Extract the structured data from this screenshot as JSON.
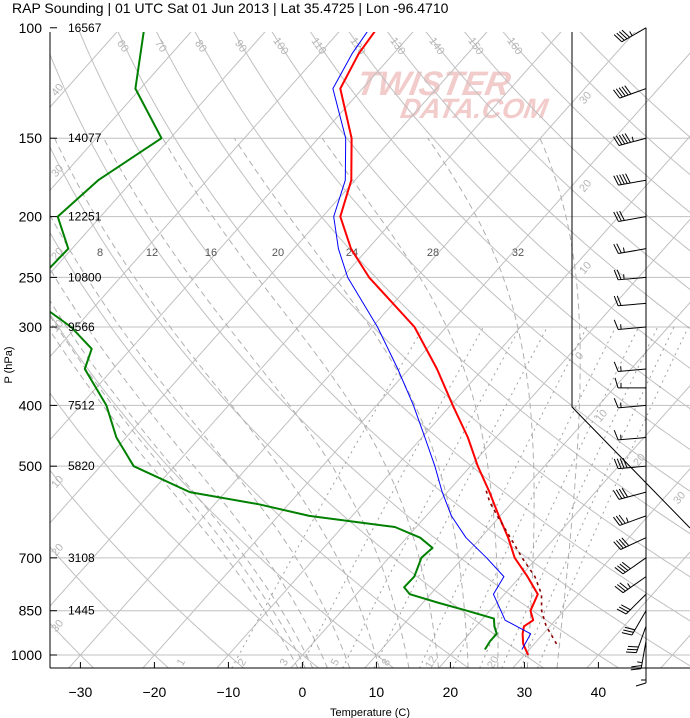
{
  "title": "RAP Sounding | 01 UTC Sat 01 Jun 2013 | Lat 35.4725 | Lon -96.4710",
  "watermark": {
    "line1": "TWISTER",
    "line2": "DATA.COM",
    "color": "#e8a0a0"
  },
  "colors": {
    "temperature": "#ff0000",
    "dewpoint": "#008000",
    "virtual_temp": "#0000ff",
    "parcel": "#8b0000",
    "grid": "#c0c0c0",
    "labels": "#b5b5b5"
  },
  "chart_data": {
    "type": "skew-t",
    "xlabel": "Temperature (C)",
    "ylabel": "P (hPa)",
    "x_ticks": [
      -30,
      -20,
      -10,
      0,
      10,
      20,
      30,
      40
    ],
    "x_tick_labels": [
      "−30",
      "−20",
      "−10",
      "0",
      "10",
      "20",
      "30",
      "40"
    ],
    "y_ticks": [
      100,
      150,
      200,
      250,
      300,
      400,
      500,
      700,
      850,
      1000
    ],
    "y_tick_labels": [
      "100",
      "150",
      "200",
      "250",
      "300",
      "400",
      "500",
      "700",
      "850",
      "1000"
    ],
    "xlim": [
      -34,
      45
    ],
    "ylim": [
      1025,
      100
    ],
    "heights": [
      {
        "p": 100,
        "label": "16567"
      },
      {
        "p": 150,
        "label": "14077"
      },
      {
        "p": 200,
        "label": "12251"
      },
      {
        "p": 250,
        "label": "10800"
      },
      {
        "p": 300,
        "label": "9566"
      },
      {
        "p": 400,
        "label": "7512"
      },
      {
        "p": 500,
        "label": "5820"
      },
      {
        "p": 700,
        "label": "3108"
      },
      {
        "p": 850,
        "label": "1445"
      }
    ],
    "isotherm_labels": [
      "-30",
      "-20",
      "-10",
      "0",
      "10",
      "20",
      "30"
    ],
    "dry_adiabat_labels": [
      "60",
      "70",
      "80",
      "90",
      "100",
      "110",
      "120",
      "130",
      "140",
      "150",
      "160"
    ],
    "mixing_ratio_labels": [
      "8",
      "12",
      "16",
      "20",
      "24",
      "28",
      "32"
    ],
    "moist_adiabat_labels": [
      "1",
      "2",
      "3",
      "5",
      "8",
      "12",
      "20"
    ],
    "series": [
      {
        "name": "temperature",
        "points": [
          [
            1000,
            30.5
          ],
          [
            960,
            28.5
          ],
          [
            925,
            27.2
          ],
          [
            900,
            26.5
          ],
          [
            880,
            27.0
          ],
          [
            850,
            25.5
          ],
          [
            800,
            24.5
          ],
          [
            750,
            21.0
          ],
          [
            700,
            17.0
          ],
          [
            650,
            13.7
          ],
          [
            600,
            9.8
          ],
          [
            550,
            5.7
          ],
          [
            500,
            1.0
          ],
          [
            450,
            -3.8
          ],
          [
            400,
            -9.7
          ],
          [
            350,
            -16.2
          ],
          [
            300,
            -24.3
          ],
          [
            250,
            -36.4
          ],
          [
            225,
            -42.3
          ],
          [
            200,
            -47.6
          ],
          [
            175,
            -50.5
          ],
          [
            150,
            -55.5
          ],
          [
            125,
            -63.0
          ],
          [
            110,
            -64.7
          ],
          [
            100,
            -65.3
          ]
        ]
      },
      {
        "name": "virtual_temperature",
        "points": [
          [
            980,
            29.0
          ],
          [
            925,
            28.3
          ],
          [
            880,
            23.2
          ],
          [
            850,
            21.5
          ],
          [
            800,
            18.5
          ],
          [
            750,
            17.8
          ],
          [
            700,
            13.2
          ],
          [
            650,
            8.0
          ],
          [
            600,
            3.4
          ],
          [
            550,
            -0.7
          ],
          [
            500,
            -4.8
          ],
          [
            450,
            -9.6
          ],
          [
            400,
            -15.0
          ],
          [
            350,
            -21.5
          ],
          [
            300,
            -29.3
          ],
          [
            250,
            -39.3
          ],
          [
            225,
            -44.0
          ],
          [
            200,
            -48.5
          ],
          [
            175,
            -51.3
          ],
          [
            150,
            -56.3
          ],
          [
            125,
            -64.0
          ],
          [
            110,
            -65.6
          ],
          [
            100,
            -66.3
          ]
        ]
      },
      {
        "name": "dewpoint",
        "points": [
          [
            980,
            24.0
          ],
          [
            950,
            23.7
          ],
          [
            925,
            23.7
          ],
          [
            900,
            22.5
          ],
          [
            875,
            21.5
          ],
          [
            850,
            16.9
          ],
          [
            825,
            12.0
          ],
          [
            800,
            7.2
          ],
          [
            780,
            5.6
          ],
          [
            750,
            5.7
          ],
          [
            700,
            4.4
          ],
          [
            675,
            4.7
          ],
          [
            650,
            1.8
          ],
          [
            625,
            -2.9
          ],
          [
            600,
            -15.8
          ],
          [
            575,
            -24.0
          ],
          [
            550,
            -34.8
          ],
          [
            500,
            -45.5
          ],
          [
            450,
            -51.3
          ],
          [
            400,
            -56.5
          ],
          [
            350,
            -63.8
          ],
          [
            325,
            -65.3
          ],
          [
            300,
            -70.7
          ],
          [
            275,
            -78.0
          ],
          [
            250,
            -80.8
          ],
          [
            225,
            -80.5
          ],
          [
            200,
            -85.8
          ],
          [
            175,
            -84.7
          ],
          [
            150,
            -81.2
          ],
          [
            125,
            -90.7
          ],
          [
            100,
            -96.8
          ]
        ]
      },
      {
        "name": "parcel",
        "points": [
          [
            960,
            33.0
          ],
          [
            925,
            31.0
          ],
          [
            900,
            29.5
          ],
          [
            850,
            27.0
          ],
          [
            800,
            25.0
          ],
          [
            750,
            22.0
          ],
          [
            700,
            18.0
          ],
          [
            650,
            14.0
          ],
          [
            600,
            9.6
          ],
          [
            570,
            6.9
          ],
          [
            540,
            4.5
          ]
        ]
      }
    ],
    "winds": [
      {
        "p": 100,
        "dir": 240,
        "spd": 45
      },
      {
        "p": 125,
        "dir": 250,
        "spd": 50
      },
      {
        "p": 150,
        "dir": 255,
        "spd": 55
      },
      {
        "p": 175,
        "dir": 260,
        "spd": 50
      },
      {
        "p": 200,
        "dir": 260,
        "spd": 30
      },
      {
        "p": 225,
        "dir": 260,
        "spd": 25
      },
      {
        "p": 250,
        "dir": 265,
        "spd": 25
      },
      {
        "p": 275,
        "dir": 265,
        "spd": 20
      },
      {
        "p": 300,
        "dir": 265,
        "spd": 15
      },
      {
        "p": 350,
        "dir": 265,
        "spd": 15
      },
      {
        "p": 375,
        "dir": 270,
        "spd": 15
      },
      {
        "p": 400,
        "dir": 265,
        "spd": 15
      },
      {
        "p": 450,
        "dir": 265,
        "spd": 15
      },
      {
        "p": 500,
        "dir": 265,
        "spd": 40
      },
      {
        "p": 550,
        "dir": 255,
        "spd": 40
      },
      {
        "p": 600,
        "dir": 250,
        "spd": 35
      },
      {
        "p": 650,
        "dir": 245,
        "spd": 40
      },
      {
        "p": 700,
        "dir": 235,
        "spd": 40
      },
      {
        "p": 750,
        "dir": 235,
        "spd": 35
      },
      {
        "p": 800,
        "dir": 225,
        "spd": 30
      },
      {
        "p": 850,
        "dir": 210,
        "spd": 30
      },
      {
        "p": 900,
        "dir": 200,
        "spd": 30
      },
      {
        "p": 950,
        "dir": 190,
        "spd": 25
      },
      {
        "p": 1000,
        "dir": 180,
        "spd": 15
      }
    ]
  }
}
